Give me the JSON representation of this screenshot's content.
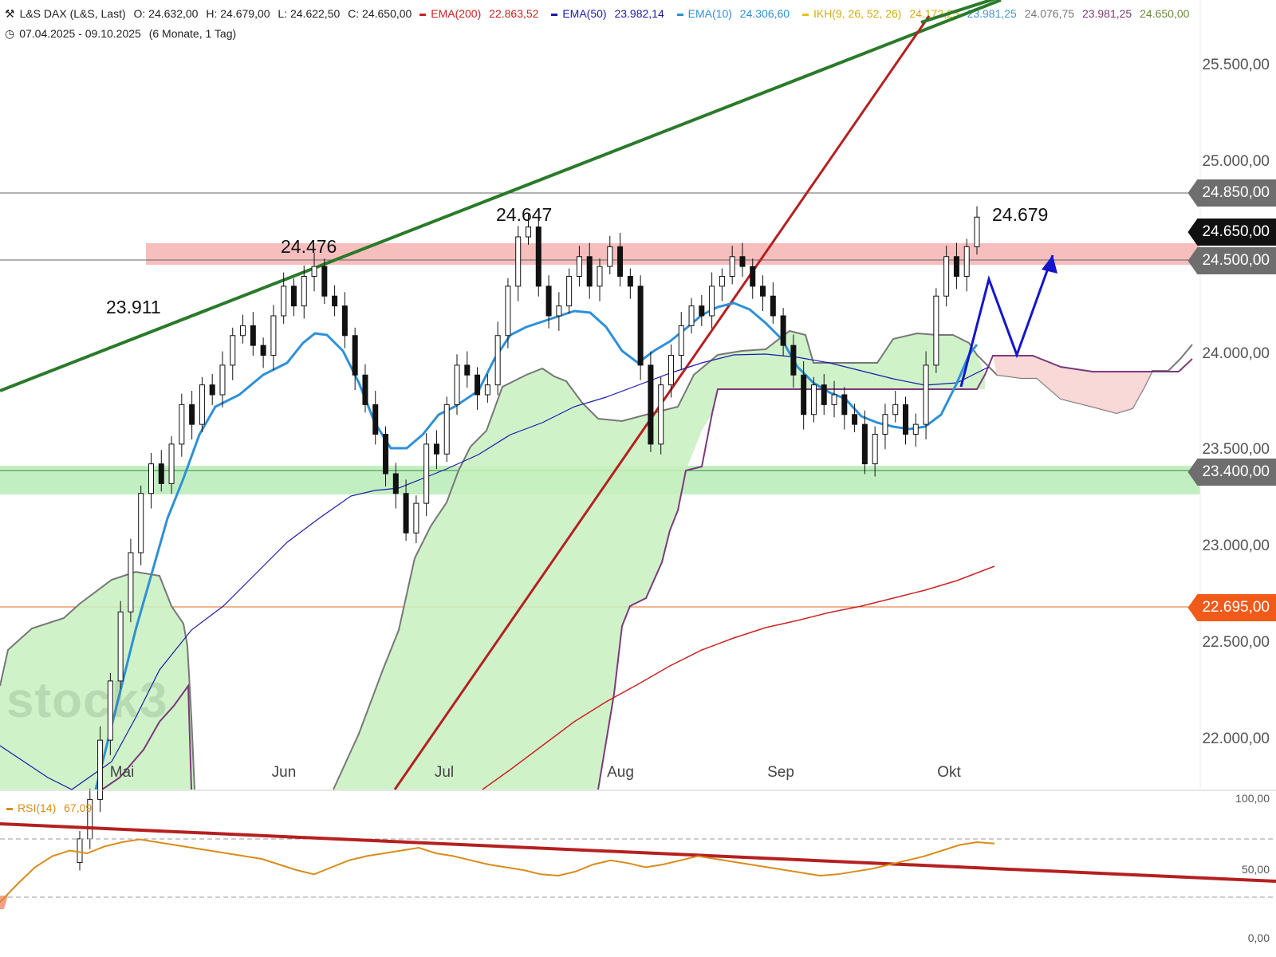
{
  "header": {
    "instrument": "L&S DAX (L&S, Last)",
    "open": "O: 24.632,00",
    "high": "H: 24.679,00",
    "low": "L: 24.622,50",
    "close": "C: 24.650,00",
    "ema200_label": "EMA(200)",
    "ema200_value": "22.863,52",
    "ema50_label": "EMA(50)",
    "ema50_value": "23.982,14",
    "ema10_label": "EMA(10)",
    "ema10_value": "24.306,60",
    "ikh_label": "IKH(9, 26, 52, 26)",
    "ikh_v1": "24.172,25",
    "ikh_v2": "23.981,25",
    "ikh_v3": "24.076,75",
    "ikh_v4": "23.981,25",
    "ikh_v5": "24.650,00",
    "range": "07.04.2025 - 09.10.2025",
    "interval": "(6 Monate, 1 Tag)"
  },
  "colors": {
    "ema200": "#cc2222",
    "ema50": "#1a1aaa",
    "ema10": "#2e90d8",
    "ikh": "#e6c020",
    "ikh_v2": "#3a9ad0",
    "ikh_v3": "#777777",
    "ikh_v4": "#7a3a7a",
    "ikh_v5": "#6a8a3a",
    "rsi": "#d98c1a",
    "cloud_green": "#c8f0c0",
    "cloud_red": "#f8d4d4",
    "resistance_zone": "#f4a8a8",
    "support_zone": "#a8e8a8",
    "trend_green": "#2a7a2a",
    "trend_red": "#b52020",
    "arrow_blue": "#1515cc",
    "badge_gray": "#6e6e6e",
    "badge_black": "#111111",
    "badge_orange": "#f25a1a"
  },
  "price_axis": {
    "labels": [
      "25.500,00",
      "25.000,00",
      "23.500,00",
      "23.000,00",
      "22.500,00",
      "22.000,00"
    ],
    "values": [
      25500,
      25000,
      23500,
      23000,
      22500,
      22000
    ],
    "label_24000": "24.000,00"
  },
  "badges": [
    {
      "text": "24.850,00",
      "value": 24850,
      "color": "#6e6e6e"
    },
    {
      "text": "24.650,00",
      "value": 24650,
      "color": "#111111"
    },
    {
      "text": "24.500,00",
      "value": 24500,
      "color": "#6e6e6e"
    },
    {
      "text": "23.400,00",
      "value": 23400,
      "color": "#6e6e6e"
    },
    {
      "text": "22.695,00",
      "value": 22695,
      "color": "#f25a1a"
    }
  ],
  "months": [
    "Mai",
    "Jun",
    "Jul",
    "Aug",
    "Sep",
    "Okt"
  ],
  "annotations": {
    "a1": "23.911",
    "a2": "24.476",
    "a3": "24.647",
    "a4": "24.679"
  },
  "watermark": "stock3",
  "rsi": {
    "label": "RSI(14)",
    "value": "67,09",
    "axis": [
      "100,00",
      "50,00",
      "0,00"
    ]
  },
  "chart_data": {
    "type": "line",
    "title": "L&S DAX (L&S, Last)",
    "period": "07.04.2025 - 09.10.2025",
    "x_months": [
      "Mai",
      "Jun",
      "Jul",
      "Aug",
      "Sep",
      "Okt"
    ],
    "ylim": [
      21750,
      25750
    ],
    "close_series": [
      21500,
      21700,
      22000,
      22300,
      22650,
      22950,
      23250,
      23400,
      23300,
      23500,
      23700,
      23600,
      23800,
      23750,
      23900,
      24050,
      24100,
      24000,
      23950,
      24150,
      24300,
      24200,
      24350,
      24400,
      24250,
      24200,
      24050,
      23850,
      23700,
      23550,
      23350,
      23250,
      23050,
      23200,
      23500,
      23450,
      23700,
      23900,
      23850,
      23750,
      23800,
      24050,
      24300,
      24550,
      24600,
      24300,
      24150,
      24200,
      24350,
      24450,
      24300,
      24400,
      24500,
      24350,
      24300,
      23900,
      23500,
      23800,
      23950,
      24100,
      24200,
      24150,
      24300,
      24350,
      24450,
      24400,
      24300,
      24250,
      24150,
      24000,
      23850,
      23650,
      23800,
      23700,
      23750,
      23650,
      23600,
      23400,
      23550,
      23650,
      23700,
      23550,
      23600,
      23900,
      24250,
      24450,
      24350,
      24500,
      24650
    ],
    "series": [
      {
        "name": "EMA(200)",
        "last": 22863.52
      },
      {
        "name": "EMA(50)",
        "last": 23982.14
      },
      {
        "name": "EMA(10)",
        "last": 24306.6
      },
      {
        "name": "RSI(14)",
        "last": 67.09
      }
    ],
    "levels": [
      24850,
      24650,
      24500,
      23400,
      22695
    ],
    "resistance_zone": [
      24450,
      24560
    ],
    "support_zone": [
      23260,
      23420
    ],
    "peaks": [
      {
        "label": "23.911",
        "value": 23911
      },
      {
        "label": "24.476",
        "value": 24476
      },
      {
        "label": "24.647",
        "value": 24647
      },
      {
        "label": "24.679",
        "value": 24679
      }
    ],
    "rsi_values": [
      25,
      38,
      50,
      58,
      62,
      60,
      65,
      68,
      70,
      68,
      66,
      64,
      62,
      60,
      58,
      56,
      52,
      48,
      45,
      50,
      55,
      58,
      60,
      62,
      64,
      60,
      58,
      55,
      52,
      50,
      48,
      45,
      44,
      47,
      52,
      55,
      53,
      50,
      52,
      55,
      58,
      56,
      54,
      52,
      50,
      48,
      46,
      44,
      45,
      47,
      49,
      52,
      55,
      58,
      62,
      66,
      68,
      67
    ],
    "rsi_ylim": [
      0,
      100
    ],
    "grid": false
  }
}
